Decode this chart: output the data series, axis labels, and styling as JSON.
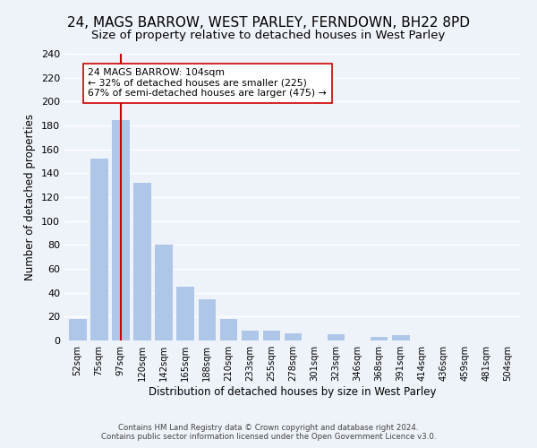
{
  "title": "24, MAGS BARROW, WEST PARLEY, FERNDOWN, BH22 8PD",
  "subtitle": "Size of property relative to detached houses in West Parley",
  "xlabel": "Distribution of detached houses by size in West Parley",
  "ylabel": "Number of detached properties",
  "bar_labels": [
    "52sqm",
    "75sqm",
    "97sqm",
    "120sqm",
    "142sqm",
    "165sqm",
    "188sqm",
    "210sqm",
    "233sqm",
    "255sqm",
    "278sqm",
    "301sqm",
    "323sqm",
    "346sqm",
    "368sqm",
    "391sqm",
    "414sqm",
    "436sqm",
    "459sqm",
    "481sqm",
    "504sqm"
  ],
  "bar_values": [
    19,
    153,
    185,
    133,
    81,
    46,
    35,
    19,
    9,
    9,
    7,
    0,
    6,
    0,
    4,
    5,
    0,
    0,
    0,
    0,
    1
  ],
  "bar_color": "#aec6e8",
  "bar_edge_color": "#ffffff",
  "vline_x": 2,
  "vline_color": "#cc0000",
  "annotation_title": "24 MAGS BARROW: 104sqm",
  "annotation_line1": "← 32% of detached houses are smaller (225)",
  "annotation_line2": "67% of semi-detached houses are larger (475) →",
  "annotation_box_color": "#ffffff",
  "annotation_box_edge": "#cc0000",
  "ylim": [
    0,
    240
  ],
  "yticks": [
    0,
    20,
    40,
    60,
    80,
    100,
    120,
    140,
    160,
    180,
    200,
    220,
    240
  ],
  "footer1": "Contains HM Land Registry data © Crown copyright and database right 2024.",
  "footer2": "Contains public sector information licensed under the Open Government Licence v3.0.",
  "background_color": "#eef2f9",
  "grid_color": "#ffffff",
  "title_fontsize": 11,
  "subtitle_fontsize": 9.5
}
